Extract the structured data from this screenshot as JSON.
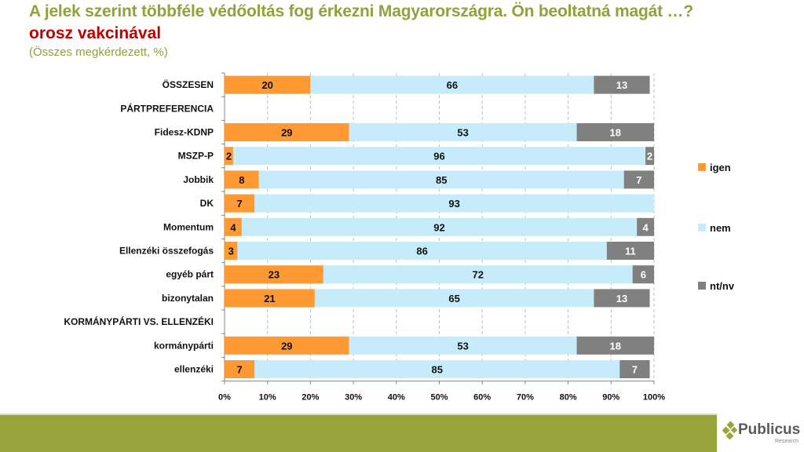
{
  "header": {
    "title": "A jelek szerint többféle védőoltás fog érkezni Magyarországra. Ön beoltatná magát …?",
    "subtitle": "orosz vakcinával",
    "note": "(Összes megkérdezett, %)"
  },
  "logo": {
    "name": "Publicus",
    "sub": "Research"
  },
  "chart_data": {
    "type": "bar",
    "orientation": "horizontal",
    "stacked": "percent",
    "title": "A jelek szerint többféle védőoltás fog érkezni Magyarországra. Ön beoltatná magát …? orosz vakcinával",
    "subtitle": "(Összes megkérdezett, %)",
    "xlabel": "",
    "ylabel": "",
    "xlim": [
      0,
      100
    ],
    "x_ticks": [
      "0%",
      "10%",
      "20%",
      "30%",
      "40%",
      "50%",
      "60%",
      "70%",
      "80%",
      "90%",
      "100%"
    ],
    "grid": "vertical dashed",
    "legend_position": "right",
    "categories": [
      "ÖSSZESEN",
      "PÁRTPREFERENCIA",
      "Fidesz-KDNP",
      "MSZP-P",
      "Jobbik",
      "DK",
      "Momentum",
      "Ellenzéki összefogás",
      "egyéb párt",
      "bizonytalan",
      "KORMÁNYPÁRTI VS. ELLENZÉKI",
      "kormánypárti",
      "ellenzéki"
    ],
    "series": [
      {
        "name": "igen",
        "color": "#ff9933",
        "label_color": "#111111",
        "values": [
          20,
          null,
          29,
          2,
          8,
          7,
          4,
          3,
          23,
          21,
          null,
          29,
          7
        ]
      },
      {
        "name": "nem",
        "color": "#c6ecfc",
        "label_color": "#111111",
        "values": [
          66,
          null,
          53,
          96,
          85,
          93,
          92,
          86,
          72,
          65,
          null,
          53,
          85
        ]
      },
      {
        "name": "nt/nv",
        "color": "#808080",
        "label_color": "#ffffff",
        "values": [
          13,
          null,
          18,
          2,
          7,
          0,
          4,
          11,
          6,
          13,
          null,
          18,
          7
        ]
      }
    ]
  }
}
